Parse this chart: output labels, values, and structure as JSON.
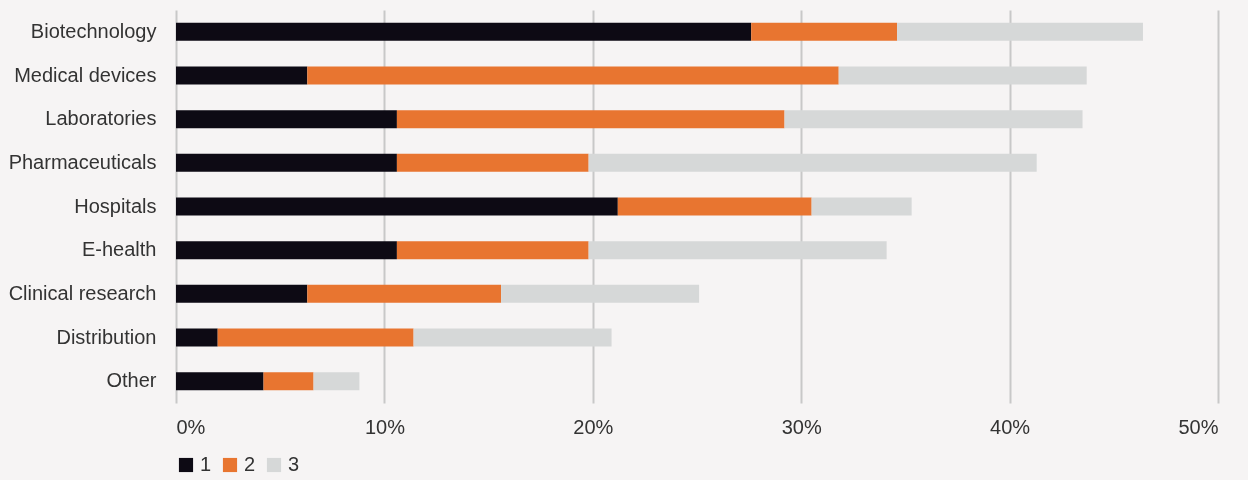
{
  "chart_data": {
    "type": "bar",
    "orientation": "horizontal",
    "stacked": true,
    "categories": [
      "Biotechnology",
      "Medical devices",
      "Laboratories",
      "Pharmaceuticals",
      "Hospitals",
      "E-health",
      "Clinical research",
      "Distribution",
      "Other"
    ],
    "series": [
      {
        "name": "1",
        "color": "#0d0a14",
        "values": [
          27.6,
          6.3,
          10.6,
          10.6,
          21.2,
          10.6,
          6.3,
          2.0,
          4.2
        ]
      },
      {
        "name": "2",
        "color": "#e87530",
        "values": [
          7.0,
          25.5,
          18.6,
          9.2,
          9.3,
          9.2,
          9.3,
          9.4,
          2.4
        ]
      },
      {
        "name": "3",
        "color": "#d6d8d8",
        "values": [
          11.8,
          11.9,
          14.3,
          21.5,
          4.8,
          14.3,
          9.5,
          9.5,
          2.2
        ]
      }
    ],
    "xlim": [
      0,
      50
    ],
    "xticks": [
      {
        "value": 0,
        "label": "0%"
      },
      {
        "value": 10,
        "label": "10%"
      },
      {
        "value": 20,
        "label": "20%"
      },
      {
        "value": 30,
        "label": "30%"
      },
      {
        "value": 40,
        "label": "40%"
      },
      {
        "value": 50,
        "label": "50%"
      }
    ],
    "grid": "x",
    "legend": "bottom"
  }
}
